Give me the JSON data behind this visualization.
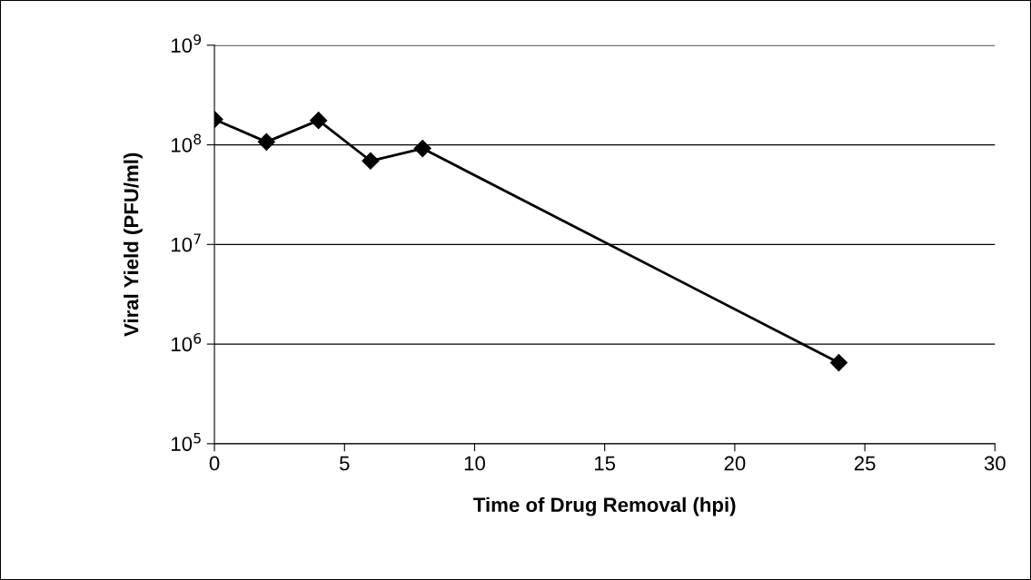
{
  "chart_data": {
    "type": "line",
    "xlabel": "Time of Drug Removal (hpi)",
    "ylabel": "Viral Yield (PFU/ml)",
    "x": [
      0,
      2,
      4,
      6,
      8,
      24
    ],
    "series": [
      {
        "color": "#000000",
        "values": [
          180000000,
          107000000,
          176000000,
          69000000,
          92000000,
          650000
        ]
      }
    ],
    "log": "y",
    "xlim": [
      0,
      30
    ],
    "xticks": [
      0,
      5,
      10,
      15,
      20,
      25,
      30
    ],
    "ylim": [
      100000,
      1000000000
    ],
    "yticks": [
      {
        "value": 100000,
        "label": "10$^{5}$"
      },
      {
        "value": 1000000,
        "label": "10$^{6}$"
      },
      {
        "value": 10000000,
        "label": "10$^{7}$"
      },
      {
        "value": 100000000,
        "label": "10$^{8}$"
      },
      {
        "value": 1000000000,
        "label": "10$^{9}$"
      }
    ],
    "grid": "y",
    "marker": "diamond",
    "line_style": "solid",
    "legend": false
  }
}
